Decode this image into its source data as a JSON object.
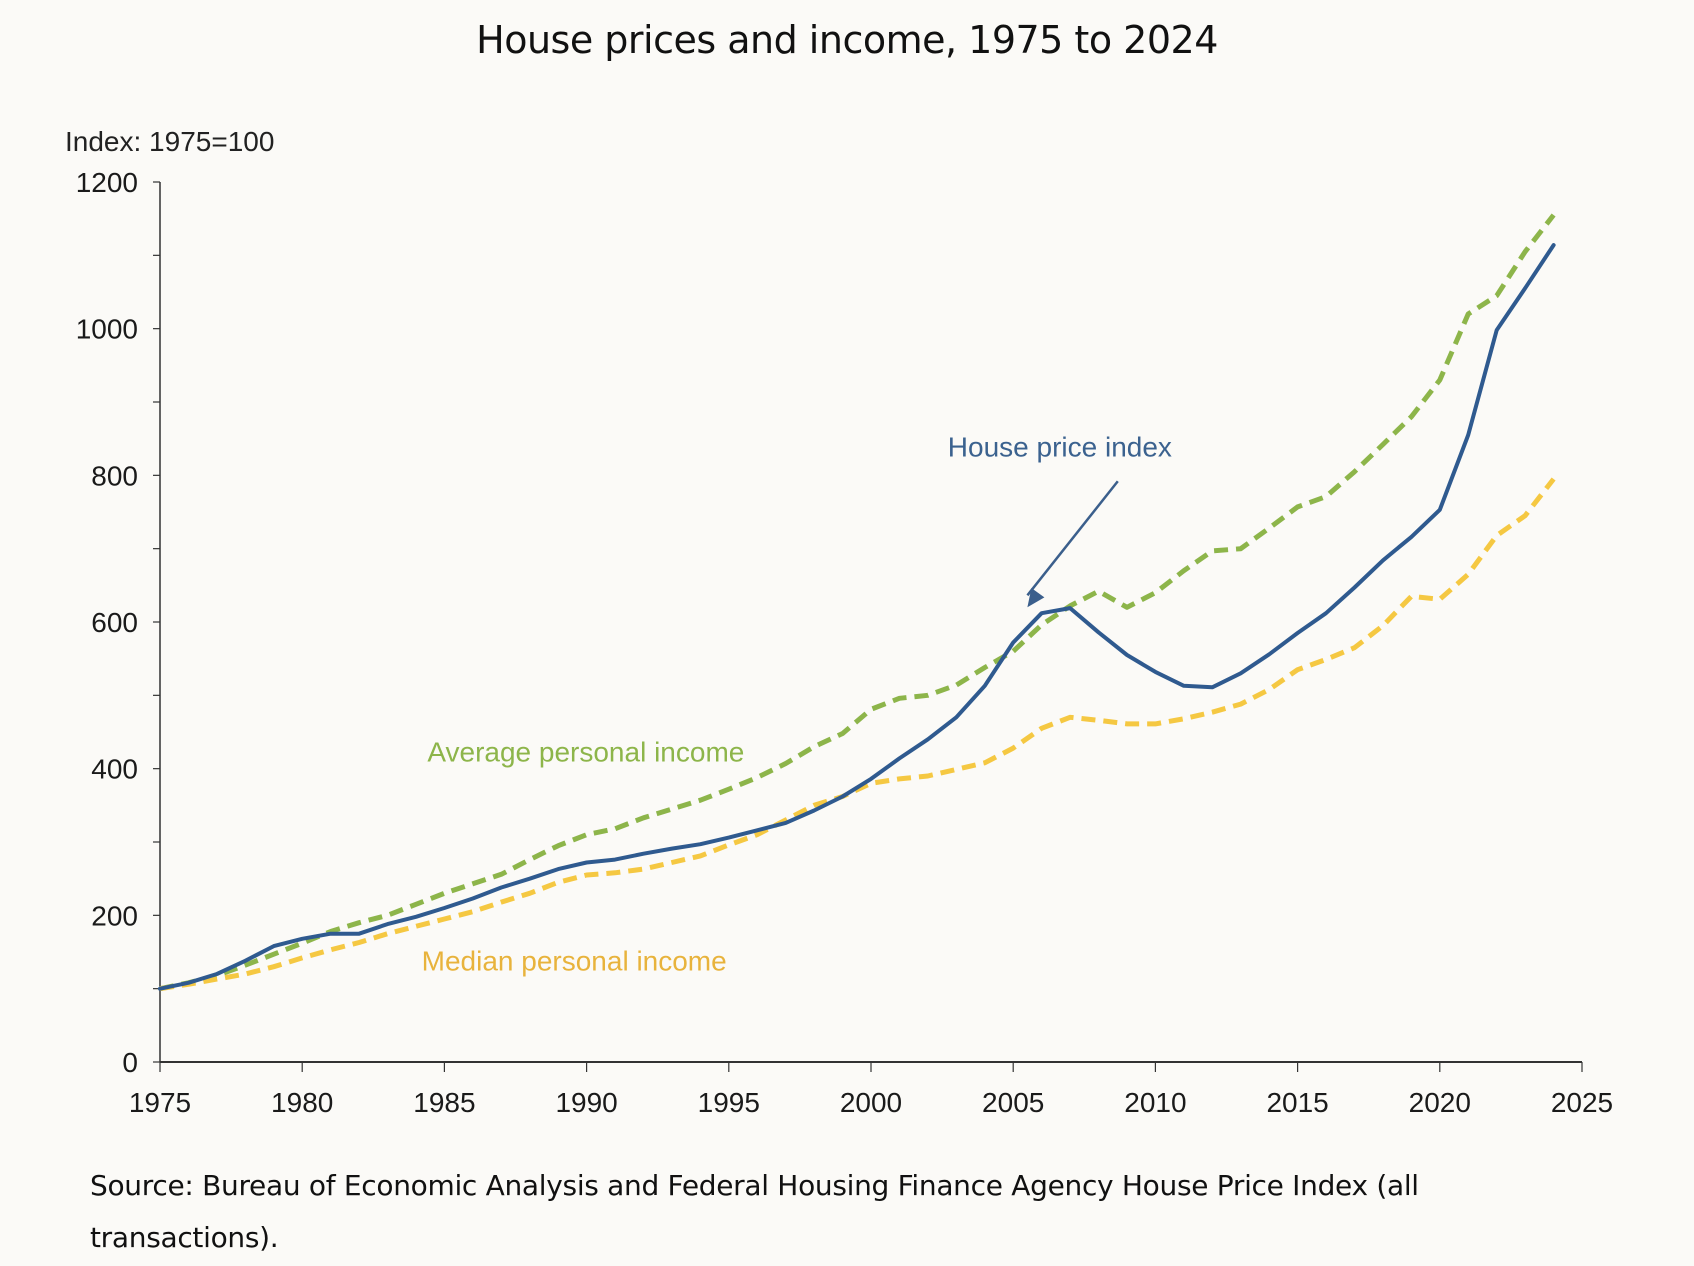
{
  "chart_data": {
    "type": "line",
    "title": "House prices and income, 1975 to 2024",
    "ylabel": "Index: 1975=100",
    "xlabel": "",
    "xlim": [
      1975,
      2025
    ],
    "ylim": [
      0,
      1200
    ],
    "x_ticks": [
      1975,
      1980,
      1985,
      1990,
      1995,
      2000,
      2005,
      2010,
      2015,
      2020,
      2025
    ],
    "y_ticks": [
      0,
      200,
      400,
      600,
      800,
      1000,
      1200
    ],
    "y_minor_step": 100,
    "grid": false,
    "x": [
      1975,
      1976,
      1977,
      1978,
      1979,
      1980,
      1981,
      1982,
      1983,
      1984,
      1985,
      1986,
      1987,
      1988,
      1989,
      1990,
      1991,
      1992,
      1993,
      1994,
      1995,
      1996,
      1997,
      1998,
      1999,
      2000,
      2001,
      2002,
      2003,
      2004,
      2005,
      2006,
      2007,
      2008,
      2009,
      2010,
      2011,
      2012,
      2013,
      2014,
      2015,
      2016,
      2017,
      2018,
      2019,
      2020,
      2021,
      2022,
      2023,
      2024
    ],
    "series": [
      {
        "name": "Average personal income",
        "color": "#8db54a",
        "style": "dashed",
        "values": [
          100,
          108,
          118,
          132,
          147,
          162,
          178,
          190,
          200,
          215,
          230,
          243,
          256,
          276,
          295,
          310,
          318,
          333,
          345,
          357,
          372,
          388,
          407,
          430,
          448,
          481,
          496,
          500,
          514,
          538,
          560,
          596,
          622,
          642,
          620,
          640,
          670,
          697,
          700,
          728,
          757,
          771,
          805,
          842,
          880,
          930,
          1020,
          1045,
          1105,
          1155
        ]
      },
      {
        "name": "Median personal income",
        "color": "#f5c842",
        "style": "dashed",
        "values": [
          100,
          106,
          113,
          120,
          130,
          142,
          153,
          163,
          175,
          185,
          195,
          205,
          218,
          230,
          245,
          255,
          258,
          263,
          272,
          281,
          296,
          310,
          330,
          350,
          362,
          380,
          386,
          390,
          399,
          408,
          428,
          455,
          470,
          466,
          461,
          461,
          468,
          477,
          488,
          508,
          535,
          549,
          565,
          595,
          635,
          631,
          665,
          718,
          745,
          795
        ]
      },
      {
        "name": "House price index",
        "color": "#2f5a8f",
        "style": "solid",
        "values": [
          100,
          108,
          120,
          138,
          158,
          168,
          175,
          175,
          188,
          198,
          210,
          223,
          238,
          250,
          263,
          272,
          276,
          284,
          291,
          297,
          306,
          316,
          326,
          343,
          362,
          386,
          414,
          440,
          470,
          513,
          572,
          612,
          619,
          586,
          555,
          532,
          513,
          511,
          530,
          556,
          585,
          612,
          647,
          684,
          716,
          753,
          855,
          998,
          1055,
          1114
        ]
      }
    ],
    "annotations": [
      {
        "text": "House price index",
        "color": "#3b628f",
        "series": "House price index",
        "arrow": true,
        "arrow_target": {
          "x": 2005.5,
          "y": 620
        },
        "anchor": {
          "x": 2002.7,
          "y": 826
        }
      },
      {
        "text": "Average personal income",
        "color": "#8db54a",
        "series": "Average personal income",
        "anchor": {
          "x": 1984.4,
          "y": 410
        }
      },
      {
        "text": "Median personal income",
        "color": "#e8b33c",
        "series": "Median personal income",
        "anchor": {
          "x": 1984.2,
          "y": 125
        }
      }
    ]
  },
  "source": "Source: Bureau of Economic Analysis and Federal Housing Finance Agency House Price Index (all transactions)."
}
